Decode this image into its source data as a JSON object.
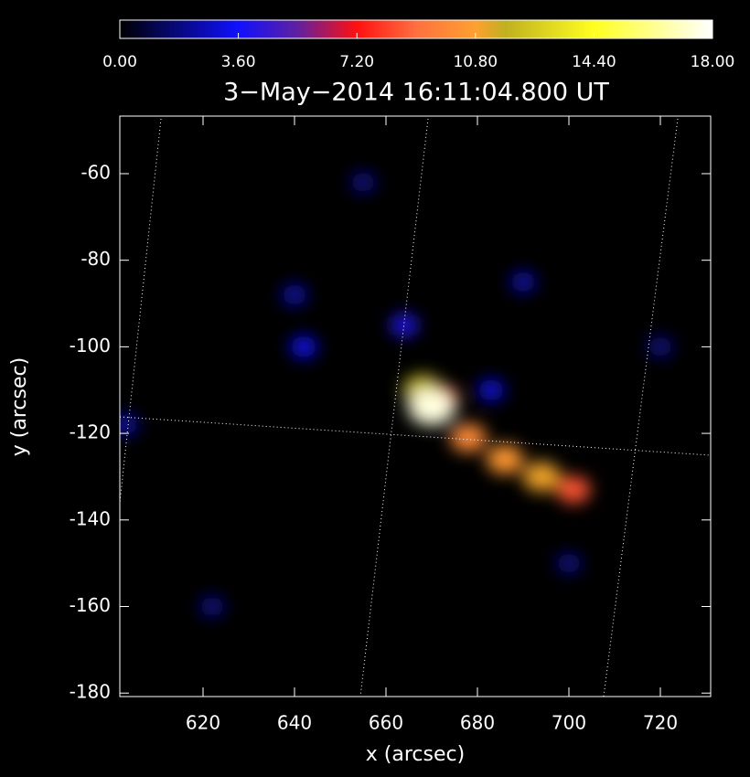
{
  "chart_data": {
    "type": "image",
    "title": "3−May−2014 16:11:04.800 UT",
    "x_label": "x (arcsec)",
    "y_label": "y (arcsec)",
    "xlim": [
      601.8,
      731
    ],
    "ylim": [
      -180.8,
      -46.7
    ],
    "xticks": [
      620,
      640,
      660,
      680,
      700,
      720
    ],
    "yticks": [
      -60,
      -80,
      -100,
      -120,
      -140,
      -160,
      -180
    ],
    "clim": [
      0,
      18
    ],
    "cticks": [
      {
        "value": 0,
        "label": "0.00"
      },
      {
        "value": 3.6,
        "label": "3.60"
      },
      {
        "value": 7.2,
        "label": "7.20"
      },
      {
        "value": 10.8,
        "label": "10.80"
      },
      {
        "value": 14.4,
        "label": "14.40"
      },
      {
        "value": 18,
        "label": "18.00"
      }
    ],
    "sources": {
      "x": [
        642,
        664,
        683,
        603,
        640,
        622,
        700,
        655,
        720,
        690,
        672,
        668,
        678,
        686,
        694,
        701,
        670
      ],
      "y": [
        -100,
        -95,
        -110,
        -118,
        -88,
        -160,
        -150,
        -62,
        -100,
        -85,
        -112,
        -110,
        -121,
        -126,
        -130,
        -133,
        -114
      ],
      "values": [
        3.5,
        4,
        3.2,
        2.5,
        2.5,
        2,
        2,
        2,
        2,
        2.5,
        9,
        12,
        10,
        10.5,
        11,
        8.5,
        17.5
      ]
    }
  }
}
